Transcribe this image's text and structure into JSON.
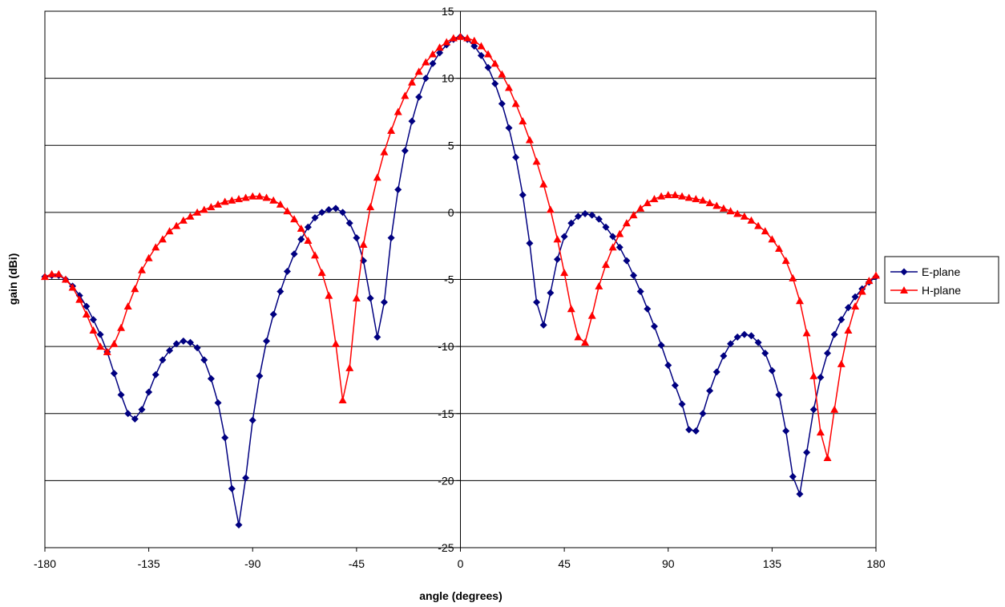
{
  "chart_data": {
    "type": "line",
    "xlabel": "angle (degrees)",
    "ylabel": "gain (dBi)",
    "xlim": [
      -180,
      180
    ],
    "ylim": [
      -25,
      15
    ],
    "xticks": [
      -180,
      -135,
      -90,
      -45,
      0,
      45,
      90,
      135,
      180
    ],
    "yticks": [
      15,
      10,
      5,
      0,
      -5,
      -10,
      -15,
      -20,
      -25
    ],
    "grid": "horizontal major gridlines",
    "legend_position": "right",
    "series": [
      {
        "name": "E-plane",
        "color": "#000080",
        "marker": "diamond",
        "points": [
          [
            -180,
            -4.8
          ],
          [
            -177,
            -4.7
          ],
          [
            -174,
            -4.7
          ],
          [
            -171,
            -5.0
          ],
          [
            -168,
            -5.5
          ],
          [
            -165,
            -6.2
          ],
          [
            -162,
            -7.0
          ],
          [
            -159,
            -8.0
          ],
          [
            -156,
            -9.1
          ],
          [
            -153,
            -10.4
          ],
          [
            -150,
            -12.0
          ],
          [
            -147,
            -13.6
          ],
          [
            -144,
            -15.0
          ],
          [
            -141,
            -15.4
          ],
          [
            -138,
            -14.7
          ],
          [
            -135,
            -13.4
          ],
          [
            -132,
            -12.1
          ],
          [
            -129,
            -11.0
          ],
          [
            -126,
            -10.3
          ],
          [
            -123,
            -9.8
          ],
          [
            -120,
            -9.6
          ],
          [
            -117,
            -9.7
          ],
          [
            -114,
            -10.1
          ],
          [
            -111,
            -11.0
          ],
          [
            -108,
            -12.4
          ],
          [
            -105,
            -14.2
          ],
          [
            -102,
            -16.8
          ],
          [
            -99,
            -20.6
          ],
          [
            -96,
            -23.3
          ],
          [
            -93,
            -19.8
          ],
          [
            -90,
            -15.5
          ],
          [
            -87,
            -12.2
          ],
          [
            -84,
            -9.6
          ],
          [
            -81,
            -7.6
          ],
          [
            -78,
            -5.9
          ],
          [
            -75,
            -4.4
          ],
          [
            -72,
            -3.1
          ],
          [
            -69,
            -2.0
          ],
          [
            -66,
            -1.1
          ],
          [
            -63,
            -0.4
          ],
          [
            -60,
            0.0
          ],
          [
            -57,
            0.2
          ],
          [
            -54,
            0.3
          ],
          [
            -51,
            0.0
          ],
          [
            -48,
            -0.8
          ],
          [
            -45,
            -1.9
          ],
          [
            -42,
            -3.6
          ],
          [
            -39,
            -6.4
          ],
          [
            -36,
            -9.3
          ],
          [
            -33,
            -6.7
          ],
          [
            -30,
            -1.9
          ],
          [
            -27,
            1.7
          ],
          [
            -24,
            4.6
          ],
          [
            -21,
            6.8
          ],
          [
            -18,
            8.6
          ],
          [
            -15,
            10.0
          ],
          [
            -12,
            11.1
          ],
          [
            -9,
            11.9
          ],
          [
            -6,
            12.5
          ],
          [
            -3,
            12.9
          ],
          [
            0,
            13.1
          ],
          [
            3,
            12.9
          ],
          [
            6,
            12.4
          ],
          [
            9,
            11.7
          ],
          [
            12,
            10.8
          ],
          [
            15,
            9.6
          ],
          [
            18,
            8.1
          ],
          [
            21,
            6.3
          ],
          [
            24,
            4.1
          ],
          [
            27,
            1.3
          ],
          [
            30,
            -2.3
          ],
          [
            33,
            -6.7
          ],
          [
            36,
            -8.4
          ],
          [
            39,
            -6.0
          ],
          [
            42,
            -3.5
          ],
          [
            45,
            -1.8
          ],
          [
            48,
            -0.8
          ],
          [
            51,
            -0.3
          ],
          [
            54,
            -0.1
          ],
          [
            57,
            -0.2
          ],
          [
            60,
            -0.5
          ],
          [
            63,
            -1.1
          ],
          [
            66,
            -1.8
          ],
          [
            69,
            -2.6
          ],
          [
            72,
            -3.6
          ],
          [
            75,
            -4.7
          ],
          [
            78,
            -5.9
          ],
          [
            81,
            -7.2
          ],
          [
            84,
            -8.5
          ],
          [
            87,
            -9.9
          ],
          [
            90,
            -11.4
          ],
          [
            93,
            -12.9
          ],
          [
            96,
            -14.3
          ],
          [
            99,
            -16.2
          ],
          [
            102,
            -16.3
          ],
          [
            105,
            -15.0
          ],
          [
            108,
            -13.3
          ],
          [
            111,
            -11.9
          ],
          [
            114,
            -10.7
          ],
          [
            117,
            -9.8
          ],
          [
            120,
            -9.3
          ],
          [
            123,
            -9.1
          ],
          [
            126,
            -9.2
          ],
          [
            129,
            -9.7
          ],
          [
            132,
            -10.5
          ],
          [
            135,
            -11.8
          ],
          [
            138,
            -13.6
          ],
          [
            141,
            -16.3
          ],
          [
            144,
            -19.7
          ],
          [
            147,
            -21.0
          ],
          [
            150,
            -17.9
          ],
          [
            153,
            -14.7
          ],
          [
            156,
            -12.3
          ],
          [
            159,
            -10.5
          ],
          [
            162,
            -9.1
          ],
          [
            165,
            -8.0
          ],
          [
            168,
            -7.1
          ],
          [
            171,
            -6.3
          ],
          [
            174,
            -5.7
          ],
          [
            177,
            -5.2
          ],
          [
            180,
            -4.8
          ]
        ]
      },
      {
        "name": "H-plane",
        "color": "#ff0000",
        "marker": "triangle",
        "points": [
          [
            -180,
            -4.8
          ],
          [
            -177,
            -4.6
          ],
          [
            -174,
            -4.6
          ],
          [
            -171,
            -5.0
          ],
          [
            -168,
            -5.6
          ],
          [
            -165,
            -6.5
          ],
          [
            -162,
            -7.6
          ],
          [
            -159,
            -8.8
          ],
          [
            -156,
            -10.0
          ],
          [
            -153,
            -10.4
          ],
          [
            -150,
            -9.8
          ],
          [
            -147,
            -8.6
          ],
          [
            -144,
            -7.0
          ],
          [
            -141,
            -5.7
          ],
          [
            -138,
            -4.3
          ],
          [
            -135,
            -3.4
          ],
          [
            -132,
            -2.6
          ],
          [
            -129,
            -2.0
          ],
          [
            -126,
            -1.4
          ],
          [
            -123,
            -1.0
          ],
          [
            -120,
            -0.6
          ],
          [
            -117,
            -0.3
          ],
          [
            -114,
            0.0
          ],
          [
            -111,
            0.2
          ],
          [
            -108,
            0.4
          ],
          [
            -105,
            0.6
          ],
          [
            -102,
            0.8
          ],
          [
            -99,
            0.9
          ],
          [
            -96,
            1.0
          ],
          [
            -93,
            1.1
          ],
          [
            -90,
            1.2
          ],
          [
            -87,
            1.2
          ],
          [
            -84,
            1.1
          ],
          [
            -81,
            0.9
          ],
          [
            -78,
            0.6
          ],
          [
            -75,
            0.1
          ],
          [
            -72,
            -0.5
          ],
          [
            -69,
            -1.2
          ],
          [
            -66,
            -2.1
          ],
          [
            -63,
            -3.2
          ],
          [
            -60,
            -4.5
          ],
          [
            -57,
            -6.2
          ],
          [
            -54,
            -9.8
          ],
          [
            -51,
            -14.0
          ],
          [
            -48,
            -11.6
          ],
          [
            -45,
            -6.4
          ],
          [
            -42,
            -2.4
          ],
          [
            -39,
            0.4
          ],
          [
            -36,
            2.6
          ],
          [
            -33,
            4.5
          ],
          [
            -30,
            6.1
          ],
          [
            -27,
            7.5
          ],
          [
            -24,
            8.7
          ],
          [
            -21,
            9.7
          ],
          [
            -18,
            10.5
          ],
          [
            -15,
            11.2
          ],
          [
            -12,
            11.8
          ],
          [
            -9,
            12.3
          ],
          [
            -6,
            12.7
          ],
          [
            -3,
            13.0
          ],
          [
            0,
            13.1
          ],
          [
            3,
            13.0
          ],
          [
            6,
            12.8
          ],
          [
            9,
            12.4
          ],
          [
            12,
            11.8
          ],
          [
            15,
            11.1
          ],
          [
            18,
            10.3
          ],
          [
            21,
            9.3
          ],
          [
            24,
            8.1
          ],
          [
            27,
            6.8
          ],
          [
            30,
            5.4
          ],
          [
            33,
            3.8
          ],
          [
            36,
            2.1
          ],
          [
            39,
            0.2
          ],
          [
            42,
            -2.0
          ],
          [
            45,
            -4.5
          ],
          [
            48,
            -7.2
          ],
          [
            51,
            -9.3
          ],
          [
            54,
            -9.7
          ],
          [
            57,
            -7.7
          ],
          [
            60,
            -5.5
          ],
          [
            63,
            -3.9
          ],
          [
            66,
            -2.6
          ],
          [
            69,
            -1.6
          ],
          [
            72,
            -0.8
          ],
          [
            75,
            -0.2
          ],
          [
            78,
            0.3
          ],
          [
            81,
            0.7
          ],
          [
            84,
            1.0
          ],
          [
            87,
            1.2
          ],
          [
            90,
            1.3
          ],
          [
            93,
            1.3
          ],
          [
            96,
            1.2
          ],
          [
            99,
            1.1
          ],
          [
            102,
            1.0
          ],
          [
            105,
            0.9
          ],
          [
            108,
            0.7
          ],
          [
            111,
            0.5
          ],
          [
            114,
            0.3
          ],
          [
            117,
            0.1
          ],
          [
            120,
            -0.1
          ],
          [
            123,
            -0.3
          ],
          [
            126,
            -0.6
          ],
          [
            129,
            -1.0
          ],
          [
            132,
            -1.4
          ],
          [
            135,
            -2.0
          ],
          [
            138,
            -2.7
          ],
          [
            141,
            -3.6
          ],
          [
            144,
            -4.9
          ],
          [
            147,
            -6.6
          ],
          [
            150,
            -9.0
          ],
          [
            153,
            -12.2
          ],
          [
            156,
            -16.4
          ],
          [
            159,
            -18.3
          ],
          [
            162,
            -14.7
          ],
          [
            165,
            -11.3
          ],
          [
            168,
            -8.8
          ],
          [
            171,
            -7.0
          ],
          [
            174,
            -5.9
          ],
          [
            177,
            -5.1
          ],
          [
            180,
            -4.7
          ]
        ]
      }
    ]
  }
}
